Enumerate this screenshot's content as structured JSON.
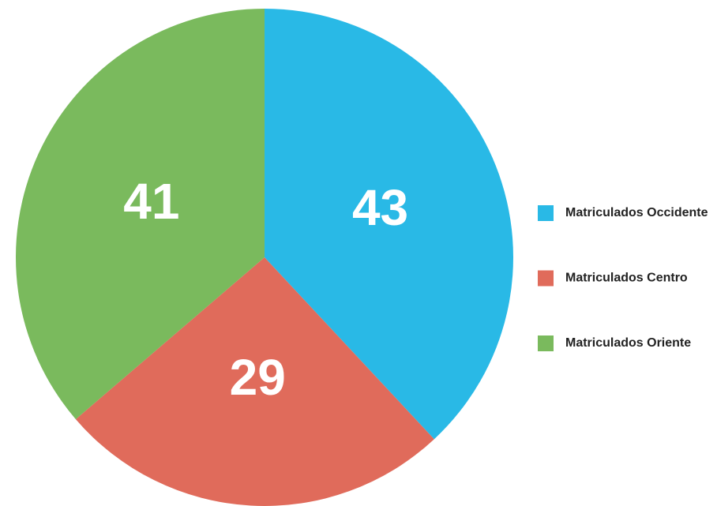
{
  "chart_data": {
    "type": "pie",
    "categories": [
      "Matriculados Occidente",
      "Matriculados Centro",
      "Matriculados Oriente"
    ],
    "values": [
      43,
      29,
      41
    ],
    "colors": [
      "#29b9e6",
      "#e06b5b",
      "#7aba5d"
    ]
  }
}
